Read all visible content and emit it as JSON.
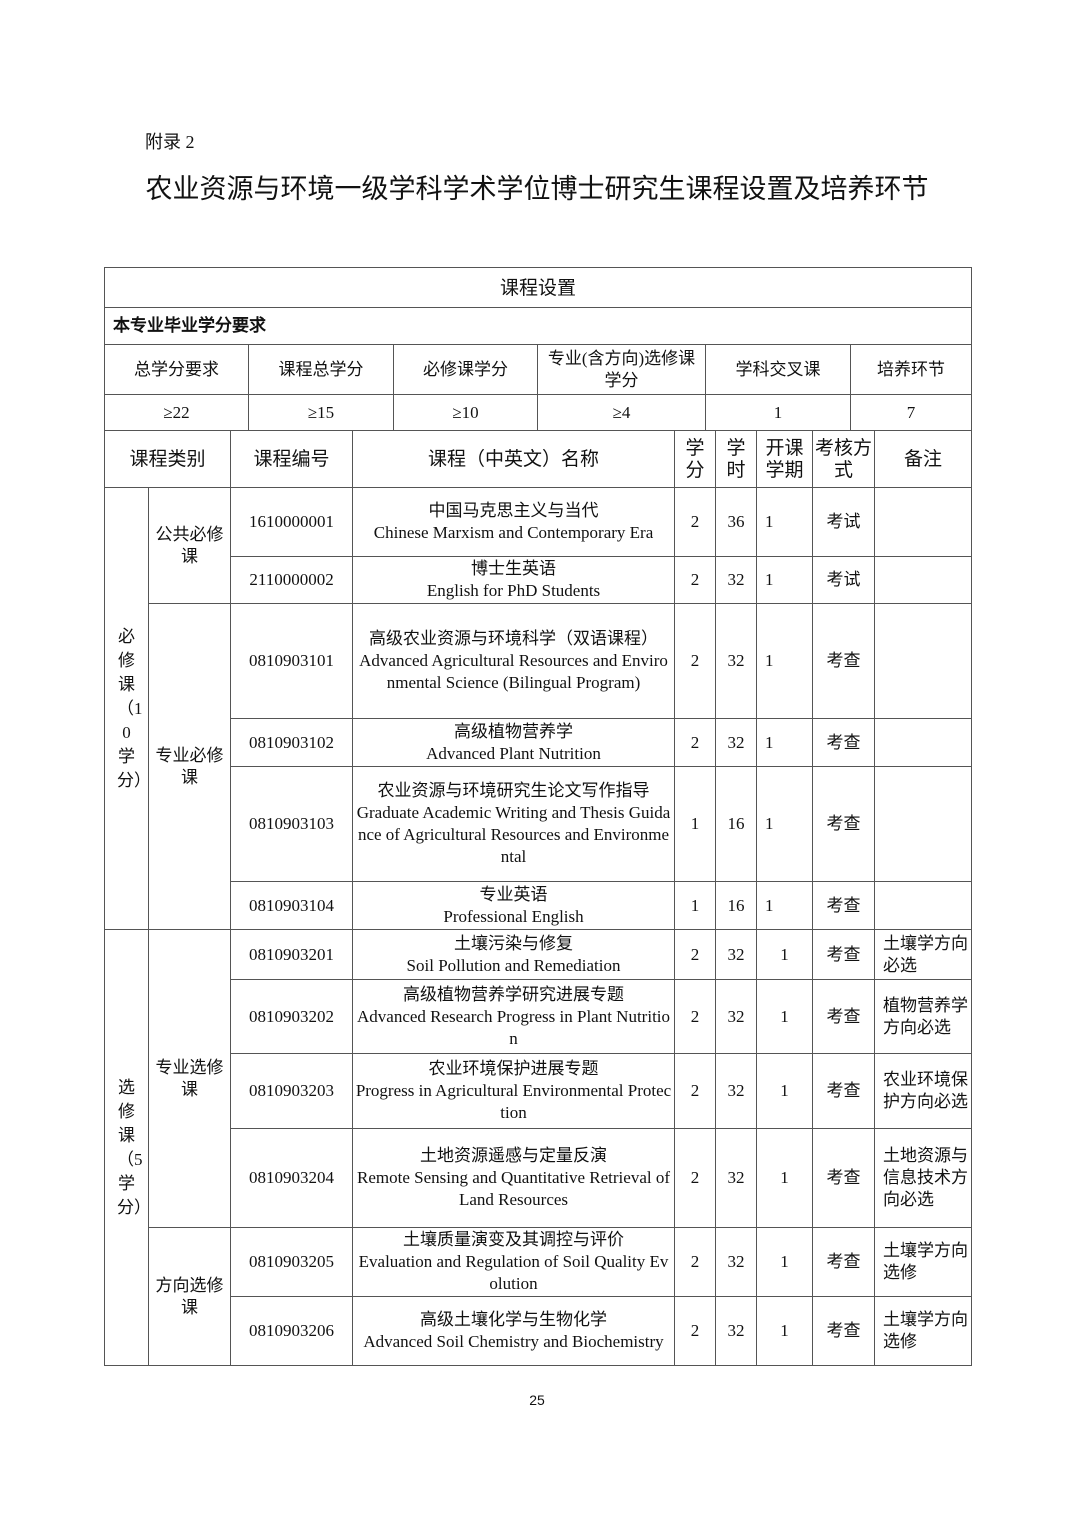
{
  "appendix_label": "附录 2",
  "title": "农业资源与环境一级学科学术学位博士研究生课程设置及培养环节",
  "table_title": "课程设置",
  "credit_req_label": "本专业毕业学分要求",
  "credit_headers": [
    "总学分要求",
    "课程总学分",
    "必修课学分",
    "专业(含方向)选修课学分",
    "学科交叉课",
    "培养环节"
  ],
  "credit_values": [
    "≥22",
    "≥15",
    "≥10",
    "≥4",
    "1",
    "7"
  ],
  "course_headers": [
    "课程类别",
    "课程编号",
    "课程（中英文）名称",
    "学分",
    "学时",
    "开课学期",
    "考核方式",
    "备注"
  ],
  "categories": [
    {
      "label": "必修课（10学分）",
      "groups": [
        {
          "label": "公共必修课",
          "courses": [
            {
              "code": "1610000001",
              "cn": "中国马克思主义与当代",
              "en": "Chinese Marxism and Contemporary Era",
              "credit": "2",
              "hours": "36",
              "term": "1",
              "exam": "考试",
              "note": ""
            },
            {
              "code": "2110000002",
              "cn": "博士生英语",
              "en": "English for PhD Students",
              "credit": "2",
              "hours": "32",
              "term": "1",
              "exam": "考试",
              "note": ""
            }
          ]
        },
        {
          "label": "专业必修课",
          "courses": [
            {
              "code": "0810903101",
              "cn": "高级农业资源与环境科学（双语课程）",
              "en": "Advanced Agricultural Resources and Environmental Science (Bilingual Program)",
              "credit": "2",
              "hours": "32",
              "term": "1",
              "exam": "考查",
              "note": ""
            },
            {
              "code": "0810903102",
              "cn": "高级植物营养学",
              "en": "Advanced Plant Nutrition",
              "credit": "2",
              "hours": "32",
              "term": "1",
              "exam": "考查",
              "note": ""
            },
            {
              "code": "0810903103",
              "cn": "农业资源与环境研究生论文写作指导",
              "en": "Graduate Academic Writing and Thesis Guidance of Agricultural Resources and Environmental",
              "credit": "1",
              "hours": "16",
              "term": "1",
              "exam": "考查",
              "note": ""
            },
            {
              "code": "0810903104",
              "cn": "专业英语",
              "en": "Professional English",
              "credit": "1",
              "hours": "16",
              "term": "1",
              "exam": "考查",
              "note": ""
            }
          ]
        }
      ]
    },
    {
      "label": "选修课（5学分）",
      "groups": [
        {
          "label": "专业选修课",
          "courses": [
            {
              "code": "0810903201",
              "cn": "土壤污染与修复",
              "en": "Soil Pollution and Remediation",
              "credit": "2",
              "hours": "32",
              "term": "1",
              "exam": "考查",
              "note": "土壤学方向必选"
            },
            {
              "code": "0810903202",
              "cn": "高级植物营养学研究进展专题",
              "en": "Advanced Research Progress in Plant Nutrition",
              "credit": "2",
              "hours": "32",
              "term": "1",
              "exam": "考查",
              "note": "植物营养学方向必选"
            },
            {
              "code": "0810903203",
              "cn": "农业环境保护进展专题",
              "en": "Progress in Agricultural Environmental Protection",
              "credit": "2",
              "hours": "32",
              "term": "1",
              "exam": "考查",
              "note": "农业环境保护方向必选"
            },
            {
              "code": "0810903204",
              "cn": "土地资源遥感与定量反演",
              "en": "Remote Sensing and Quantitative Retrieval of Land Resources",
              "credit": "2",
              "hours": "32",
              "term": "1",
              "exam": "考查",
              "note": "土地资源与信息技术方向必选"
            }
          ]
        },
        {
          "label": "方向选修课",
          "courses": [
            {
              "code": "0810903205",
              "cn": "土壤质量演变及其调控与评价",
              "en": "Evaluation and Regulation of Soil Quality Evolution",
              "credit": "2",
              "hours": "32",
              "term": "1",
              "exam": "考查",
              "note": "土壤学方向选修"
            },
            {
              "code": "0810903206",
              "cn": "高级土壤化学与生物化学",
              "en": "Advanced Soil Chemistry and Biochemistry",
              "credit": "2",
              "hours": "32",
              "term": "1",
              "exam": "考查",
              "note": "土壤学方向选修"
            }
          ]
        }
      ]
    }
  ],
  "page_number": "25"
}
